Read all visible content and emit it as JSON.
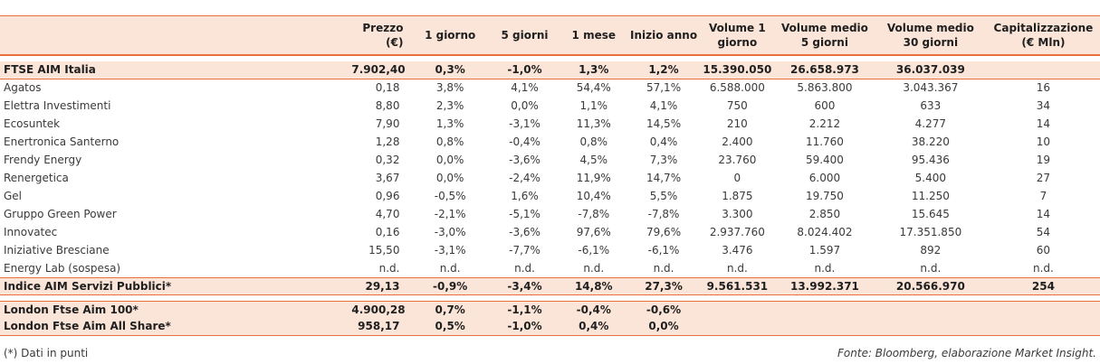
{
  "columns": [
    "",
    "Prezzo\n(€)",
    "1 giorno",
    "5 giorni",
    "1 mese",
    "Inizio anno",
    "Volume 1\ngiorno",
    "Volume medio\n5 giorni",
    "Volume medio\n30 giorni",
    "Capitalizzazione\n(€ Mln)"
  ],
  "header": {
    "prezzo_l1": "Prezzo",
    "prezzo_l2": "(€)",
    "g1": "1 giorno",
    "g5": "5 giorni",
    "m1": "1 mese",
    "ia": "Inizio anno",
    "v1_l1": "Volume 1",
    "v1_l2": "giorno",
    "v5_l1": "Volume medio",
    "v5_l2": "5 giorni",
    "v30_l1": "Volume medio",
    "v30_l2": "30 giorni",
    "cap_l1": "Capitalizzazione",
    "cap_l2": "(€ Mln)"
  },
  "ftse_aim": {
    "name": "FTSE AIM Italia",
    "prezzo": "7.902,40",
    "g1": "0,3%",
    "g5": "-1,0%",
    "m1": "1,3%",
    "ia": "1,2%",
    "v1": "15.390.050",
    "v5": "26.658.973",
    "v30": "36.037.039",
    "cap": ""
  },
  "rows": [
    {
      "name": "Agatos",
      "prezzo": "0,18",
      "g1": "3,8%",
      "g5": "4,1%",
      "m1": "54,4%",
      "ia": "57,1%",
      "v1": "6.588.000",
      "v5": "5.863.800",
      "v30": "3.043.367",
      "cap": "16"
    },
    {
      "name": "Elettra Investimenti",
      "prezzo": "8,80",
      "g1": "2,3%",
      "g5": "0,0%",
      "m1": "1,1%",
      "ia": "4,1%",
      "v1": "750",
      "v5": "600",
      "v30": "633",
      "cap": "34"
    },
    {
      "name": "Ecosuntek",
      "prezzo": "7,90",
      "g1": "1,3%",
      "g5": "-3,1%",
      "m1": "11,3%",
      "ia": "14,5%",
      "v1": "210",
      "v5": "2.212",
      "v30": "4.277",
      "cap": "14"
    },
    {
      "name": "Enertronica Santerno",
      "prezzo": "1,28",
      "g1": "0,8%",
      "g5": "-0,4%",
      "m1": "0,8%",
      "ia": "0,4%",
      "v1": "2.400",
      "v5": "11.760",
      "v30": "38.220",
      "cap": "10"
    },
    {
      "name": "Frendy Energy",
      "prezzo": "0,32",
      "g1": "0,0%",
      "g5": "-3,6%",
      "m1": "4,5%",
      "ia": "7,3%",
      "v1": "23.760",
      "v5": "59.400",
      "v30": "95.436",
      "cap": "19"
    },
    {
      "name": "Renergetica",
      "prezzo": "3,67",
      "g1": "0,0%",
      "g5": "-2,4%",
      "m1": "11,9%",
      "ia": "14,7%",
      "v1": "0",
      "v5": "6.000",
      "v30": "5.400",
      "cap": "27"
    },
    {
      "name": "Gel",
      "prezzo": "0,96",
      "g1": "-0,5%",
      "g5": "1,6%",
      "m1": "10,4%",
      "ia": "5,5%",
      "v1": "1.875",
      "v5": "19.750",
      "v30": "11.250",
      "cap": "7"
    },
    {
      "name": "Gruppo Green Power",
      "prezzo": "4,70",
      "g1": "-2,1%",
      "g5": "-5,1%",
      "m1": "-7,8%",
      "ia": "-7,8%",
      "v1": "3.300",
      "v5": "2.850",
      "v30": "15.645",
      "cap": "14"
    },
    {
      "name": "Innovatec",
      "prezzo": "0,16",
      "g1": "-3,0%",
      "g5": "-3,6%",
      "m1": "97,6%",
      "ia": "79,6%",
      "v1": "2.937.760",
      "v5": "8.024.402",
      "v30": "17.351.850",
      "cap": "54"
    },
    {
      "name": "Iniziative Bresciane",
      "prezzo": "15,50",
      "g1": "-3,1%",
      "g5": "-7,7%",
      "m1": "-6,1%",
      "ia": "-6,1%",
      "v1": "3.476",
      "v5": "1.597",
      "v30": "892",
      "cap": "60"
    },
    {
      "name": "Energy Lab (sospesa)",
      "prezzo": "n.d.",
      "g1": "n.d.",
      "g5": "n.d.",
      "m1": "n.d.",
      "ia": "n.d.",
      "v1": "n.d.",
      "v5": "n.d.",
      "v30": "n.d.",
      "cap": "n.d."
    }
  ],
  "indice": {
    "name": "Indice AIM Servizi Pubblici*",
    "prezzo": "29,13",
    "g1": "-0,9%",
    "g5": "-3,4%",
    "m1": "14,8%",
    "ia": "27,3%",
    "v1": "9.561.531",
    "v5": "13.992.371",
    "v30": "20.566.970",
    "cap": "254"
  },
  "london100": {
    "name": "London Ftse Aim 100*",
    "prezzo": "4.900,28",
    "g1": "0,7%",
    "g5": "-1,1%",
    "m1": "-0,4%",
    "ia": "-0,6%"
  },
  "londonall": {
    "name": "London Ftse Aim All Share*",
    "prezzo": "958,17",
    "g1": "0,5%",
    "g5": "-1,0%",
    "m1": "0,4%",
    "ia": "0,0%"
  },
  "footer": {
    "note": "(*) Dati in punti",
    "source": "Fonte: Bloomberg, elaborazione Market Insight."
  },
  "colors": {
    "accent": "#e8703a",
    "band": "#fbe5d8"
  }
}
